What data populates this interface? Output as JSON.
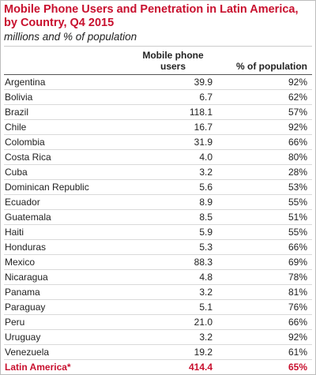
{
  "header": {
    "title": "Mobile Phone Users and Penetration in Latin America, by Country, Q4 2015",
    "subtitle": "millions and % of population"
  },
  "table": {
    "columns": [
      "",
      "Mobile phone users",
      "% of population"
    ],
    "rows": [
      [
        "Argentina",
        "39.9",
        "92%"
      ],
      [
        "Bolivia",
        "6.7",
        "62%"
      ],
      [
        "Brazil",
        "118.1",
        "57%"
      ],
      [
        "Chile",
        "16.7",
        "92%"
      ],
      [
        "Colombia",
        "31.9",
        "66%"
      ],
      [
        "Costa Rica",
        "4.0",
        "80%"
      ],
      [
        "Cuba",
        "3.2",
        "28%"
      ],
      [
        "Dominican Republic",
        "5.6",
        "53%"
      ],
      [
        "Ecuador",
        "8.9",
        "55%"
      ],
      [
        "Guatemala",
        "8.5",
        "51%"
      ],
      [
        "Haiti",
        "5.9",
        "55%"
      ],
      [
        "Honduras",
        "5.3",
        "66%"
      ],
      [
        "Mexico",
        "88.3",
        "69%"
      ],
      [
        "Nicaragua",
        "4.8",
        "78%"
      ],
      [
        "Panama",
        "3.2",
        "81%"
      ],
      [
        "Paraguay",
        "5.1",
        "76%"
      ],
      [
        "Peru",
        "21.0",
        "66%"
      ],
      [
        "Uruguay",
        "3.2",
        "92%"
      ],
      [
        "Venezuela",
        "19.2",
        "61%"
      ]
    ],
    "total": [
      "Latin America*",
      "414.4",
      "65%"
    ]
  }
}
